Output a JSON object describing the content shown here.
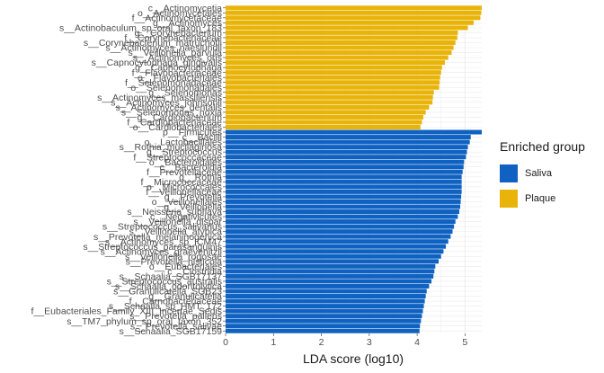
{
  "chart_data": {
    "type": "bar",
    "orientation": "horizontal",
    "xlabel": "LDA score (log10)",
    "xlim": [
      0,
      5.35
    ],
    "xticks": [
      0,
      1,
      2,
      3,
      4,
      5
    ],
    "grid": true,
    "legend_position": "right",
    "legend_title": "Enriched group",
    "groups": [
      {
        "name": "Saliva",
        "color": "#0f62c1"
      },
      {
        "name": "Plaque",
        "color": "#e9b40a"
      }
    ],
    "bars": [
      {
        "label": "c__Actinomycetia",
        "value": 5.35,
        "group": "Plaque"
      },
      {
        "label": "o__Actinomycetales",
        "value": 5.34,
        "group": "Plaque"
      },
      {
        "label": "f__Actinomycetaceae",
        "value": 5.32,
        "group": "Plaque"
      },
      {
        "label": "g__Actinomyces",
        "value": 5.18,
        "group": "Plaque"
      },
      {
        "label": "s__Actinobaculum_sp_oral_taxon_183",
        "value": 5.06,
        "group": "Plaque"
      },
      {
        "label": "g__Corynebacterium",
        "value": 4.85,
        "group": "Plaque"
      },
      {
        "label": "f__Corynebacteriaceae",
        "value": 4.84,
        "group": "Plaque"
      },
      {
        "label": "s__Corynebacterium_matruchotii",
        "value": 4.8,
        "group": "Plaque"
      },
      {
        "label": "s__Actinomyces_naeslundii",
        "value": 4.76,
        "group": "Plaque"
      },
      {
        "label": "s__Veillonella_parvula",
        "value": 4.72,
        "group": "Plaque"
      },
      {
        "label": "s__Actinomyces_oris",
        "value": 4.65,
        "group": "Plaque"
      },
      {
        "label": "s__Capnocytophaga_gingivalis",
        "value": 4.58,
        "group": "Plaque"
      },
      {
        "label": "g__Capnocytophaga",
        "value": 4.52,
        "group": "Plaque"
      },
      {
        "label": "f__Flavobacteriaceae",
        "value": 4.5,
        "group": "Plaque"
      },
      {
        "label": "o__Flavobacteriales",
        "value": 4.48,
        "group": "Plaque"
      },
      {
        "label": "f__Selenomonadaceae",
        "value": 4.47,
        "group": "Plaque"
      },
      {
        "label": "o__Selenomonadales",
        "value": 4.46,
        "group": "Plaque"
      },
      {
        "label": "g__Selenomonas",
        "value": 4.35,
        "group": "Plaque"
      },
      {
        "label": "s__Actinomyces_massiliensis",
        "value": 4.33,
        "group": "Plaque"
      },
      {
        "label": "s__Actinomyces_johnsonii",
        "value": 4.32,
        "group": "Plaque"
      },
      {
        "label": "s__Actinomyces_dentalis",
        "value": 4.25,
        "group": "Plaque"
      },
      {
        "label": "s__Selenomonas_noxia",
        "value": 4.18,
        "group": "Plaque"
      },
      {
        "label": "g__Cardiobacterium",
        "value": 4.13,
        "group": "Plaque"
      },
      {
        "label": "f__Cardiobacteriaceae",
        "value": 4.1,
        "group": "Plaque"
      },
      {
        "label": "o__Cardiobacteriales",
        "value": 4.07,
        "group": "Plaque"
      },
      {
        "label": "p__Firmicutes",
        "value": 5.35,
        "group": "Saliva"
      },
      {
        "label": "c__Bacilli",
        "value": 5.12,
        "group": "Saliva"
      },
      {
        "label": "o__Lactobacillales",
        "value": 5.1,
        "group": "Saliva"
      },
      {
        "label": "s__Rothia_mucilaginosa",
        "value": 5.06,
        "group": "Saliva"
      },
      {
        "label": "g__Streptococcus",
        "value": 5.04,
        "group": "Saliva"
      },
      {
        "label": "f__Streptococcaceae",
        "value": 5.02,
        "group": "Saliva"
      },
      {
        "label": "o__Bacteroidales",
        "value": 4.98,
        "group": "Saliva"
      },
      {
        "label": "c__Bacteroidia",
        "value": 4.97,
        "group": "Saliva"
      },
      {
        "label": "f__Prevotellaceae",
        "value": 4.95,
        "group": "Saliva"
      },
      {
        "label": "g__Rothia",
        "value": 4.93,
        "group": "Saliva"
      },
      {
        "label": "f__Micrococcaceae",
        "value": 4.93,
        "group": "Saliva"
      },
      {
        "label": "o__Micrococcales",
        "value": 4.93,
        "group": "Saliva"
      },
      {
        "label": "f__Veillonellaceae",
        "value": 4.93,
        "group": "Saliva"
      },
      {
        "label": "g__Prevotella",
        "value": 4.92,
        "group": "Saliva"
      },
      {
        "label": "o__Veillonellales",
        "value": 4.91,
        "group": "Saliva"
      },
      {
        "label": "g__Veillonella",
        "value": 4.9,
        "group": "Saliva"
      },
      {
        "label": "s__Neisseria_subflava",
        "value": 4.88,
        "group": "Saliva"
      },
      {
        "label": "c__Negativicutes",
        "value": 4.85,
        "group": "Saliva"
      },
      {
        "label": "s__Veillonella_dispar",
        "value": 4.8,
        "group": "Saliva"
      },
      {
        "label": "s__Streptococcus_salivarius",
        "value": 4.77,
        "group": "Saliva"
      },
      {
        "label": "s__Veillonella_atypica",
        "value": 4.74,
        "group": "Saliva"
      },
      {
        "label": "s__Prevotella_melaninogenica",
        "value": 4.7,
        "group": "Saliva"
      },
      {
        "label": "s__Actinomyces_sp_ICM47",
        "value": 4.65,
        "group": "Saliva"
      },
      {
        "label": "s__Streptococcus_parasanguinis",
        "value": 4.6,
        "group": "Saliva"
      },
      {
        "label": "s__Actinomyces_graevenitzii",
        "value": 4.55,
        "group": "Saliva"
      },
      {
        "label": "s__Veillonella_rogosae",
        "value": 4.5,
        "group": "Saliva"
      },
      {
        "label": "s__Prevotella_histicola",
        "value": 4.45,
        "group": "Saliva"
      },
      {
        "label": "o__Eubacteriales",
        "value": 4.38,
        "group": "Saliva"
      },
      {
        "label": "c__Clostridia",
        "value": 4.36,
        "group": "Saliva"
      },
      {
        "label": "s__Schaalia_SGB17137",
        "value": 4.34,
        "group": "Saliva"
      },
      {
        "label": "s__Streptococcus_australis",
        "value": 4.3,
        "group": "Saliva"
      },
      {
        "label": "s__Schaalia_odontolytica",
        "value": 4.25,
        "group": "Saliva"
      },
      {
        "label": "s__Granulicatella_SGB23",
        "value": 4.2,
        "group": "Saliva"
      },
      {
        "label": "g__Granulicatella",
        "value": 4.18,
        "group": "Saliva"
      },
      {
        "label": "f__Carnobacteriaceae",
        "value": 4.16,
        "group": "Saliva"
      },
      {
        "label": "s__Schaalia_sp_HMT_172",
        "value": 4.14,
        "group": "Saliva"
      },
      {
        "label": "f__Eubacteriales_Family_XIII_Incertae_Sedis",
        "value": 4.12,
        "group": "Saliva"
      },
      {
        "label": "s__Prevotella_pallens",
        "value": 4.1,
        "group": "Saliva"
      },
      {
        "label": "s__TM7_phylum_sp_oral_taxon_352",
        "value": 4.08,
        "group": "Saliva"
      },
      {
        "label": "s__Prevotella_salivae",
        "value": 4.06,
        "group": "Saliva"
      },
      {
        "label": "s__Schaalia_SGB17159",
        "value": 4.05,
        "group": "Saliva"
      }
    ]
  }
}
